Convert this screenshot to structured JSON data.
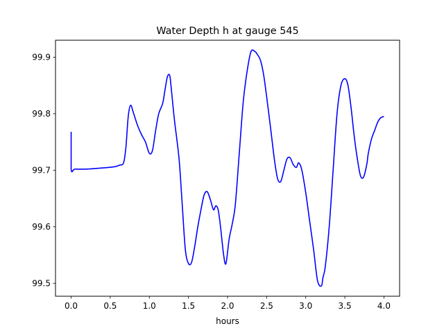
{
  "chart_data": {
    "type": "line",
    "title": "Water Depth h at gauge 545",
    "xlabel": "hours",
    "ylabel": "",
    "xlim": [
      -0.2,
      4.2
    ],
    "ylim": [
      99.477,
      99.93
    ],
    "xticks": [
      0.0,
      0.5,
      1.0,
      1.5,
      2.0,
      2.5,
      3.0,
      3.5,
      4.0
    ],
    "xtick_labels": [
      "0.0",
      "0.5",
      "1.0",
      "1.5",
      "2.0",
      "2.5",
      "3.0",
      "3.5",
      "4.0"
    ],
    "yticks": [
      99.5,
      99.6,
      99.7,
      99.8,
      99.9
    ],
    "ytick_labels": [
      "99.5",
      "99.6",
      "99.7",
      "99.8",
      "99.9"
    ],
    "grid": false,
    "series": [
      {
        "color": "#0000ff",
        "x": [
          0.0,
          0.0,
          0.05,
          0.2,
          0.4,
          0.55,
          0.62,
          0.67,
          0.7,
          0.73,
          0.76,
          0.8,
          0.85,
          0.9,
          0.95,
          1.0,
          1.04,
          1.08,
          1.12,
          1.17,
          1.2,
          1.23,
          1.26,
          1.28,
          1.32,
          1.38,
          1.42,
          1.46,
          1.5,
          1.54,
          1.58,
          1.62,
          1.66,
          1.7,
          1.74,
          1.78,
          1.82,
          1.85,
          1.88,
          1.91,
          1.95,
          1.98,
          2.02,
          2.06,
          2.1,
          2.15,
          2.2,
          2.25,
          2.3,
          2.35,
          2.38,
          2.42,
          2.46,
          2.5,
          2.55,
          2.6,
          2.64,
          2.68,
          2.72,
          2.76,
          2.8,
          2.84,
          2.88,
          2.91,
          2.95,
          3.0,
          3.05,
          3.1,
          3.15,
          3.2,
          3.22,
          3.25,
          3.3,
          3.35,
          3.4,
          3.45,
          3.5,
          3.54,
          3.58,
          3.62,
          3.66,
          3.7,
          3.74,
          3.78,
          3.8,
          3.84,
          3.88,
          3.92,
          3.96,
          4.0
        ],
        "y": [
          99.768,
          99.702,
          99.702,
          99.702,
          99.704,
          99.706,
          99.709,
          99.713,
          99.74,
          99.795,
          99.815,
          99.8,
          99.779,
          99.763,
          99.75,
          99.73,
          99.735,
          99.77,
          99.8,
          99.818,
          99.842,
          99.865,
          99.868,
          99.845,
          99.79,
          99.72,
          99.64,
          99.56,
          99.535,
          99.537,
          99.565,
          99.6,
          99.63,
          99.656,
          99.662,
          99.648,
          99.63,
          99.637,
          99.63,
          99.6,
          99.55,
          99.535,
          99.578,
          99.605,
          99.64,
          99.73,
          99.82,
          99.875,
          99.91,
          99.91,
          99.905,
          99.895,
          99.87,
          99.83,
          99.775,
          99.718,
          99.685,
          99.68,
          99.7,
          99.72,
          99.722,
          99.71,
          99.705,
          99.713,
          99.7,
          99.66,
          99.61,
          99.56,
          99.505,
          99.495,
          99.51,
          99.53,
          99.6,
          99.7,
          99.8,
          99.85,
          99.862,
          99.85,
          99.81,
          99.76,
          99.72,
          99.69,
          99.688,
          99.71,
          99.73,
          99.755,
          99.77,
          99.785,
          99.793,
          99.795
        ]
      }
    ]
  }
}
